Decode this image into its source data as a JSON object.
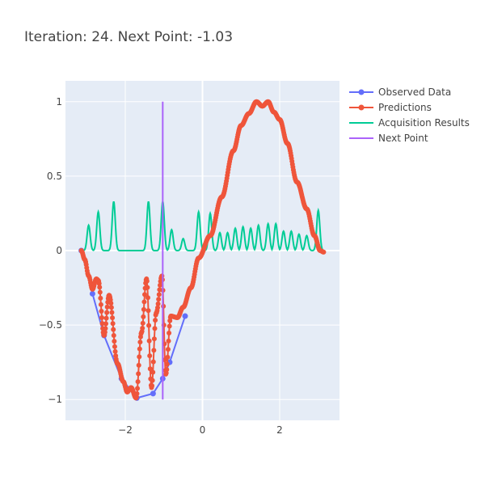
{
  "chart_data": {
    "type": "line",
    "title": "Iteration: 24. Next Point: -1.03",
    "xlabel": "",
    "ylabel": "",
    "xlim": [
      -3.55,
      3.55
    ],
    "ylim": [
      -1.14,
      1.14
    ],
    "x_ticks": [
      -2,
      0,
      2
    ],
    "x_tick_labels": [
      "−2",
      "0",
      "2"
    ],
    "y_ticks": [
      -1,
      -0.5,
      0,
      0.5,
      1
    ],
    "y_tick_labels": [
      "−1",
      "−0.5",
      "0",
      "0.5",
      "1"
    ],
    "grid": true,
    "legend_position": "top-right",
    "series": [
      {
        "name": "Observed Data",
        "mode": "lines+markers",
        "color": "#636efa",
        "x": [
          -3.14,
          -2.85,
          -2.55,
          -2.1,
          -1.7,
          -1.28,
          -1.03,
          -0.85,
          -0.45
        ],
        "y": [
          0.0,
          -0.29,
          -0.57,
          -0.86,
          -0.99,
          -0.96,
          -0.86,
          -0.75,
          -0.44
        ]
      },
      {
        "name": "Predictions",
        "mode": "lines+markers",
        "color": "#ef553b",
        "keypoints": [
          [
            -3.14,
            0.0
          ],
          [
            -3.05,
            -0.06
          ],
          [
            -2.95,
            -0.17
          ],
          [
            -2.85,
            -0.26
          ],
          [
            -2.75,
            -0.19
          ],
          [
            -2.7,
            -0.2
          ],
          [
            -2.55,
            -0.57
          ],
          [
            -2.42,
            -0.3
          ],
          [
            -2.2,
            -0.76
          ],
          [
            -2.05,
            -0.88
          ],
          [
            -1.95,
            -0.95
          ],
          [
            -1.85,
            -0.92
          ],
          [
            -1.72,
            -0.99
          ],
          [
            -1.58,
            -0.55
          ],
          [
            -1.45,
            -0.19
          ],
          [
            -1.32,
            -0.92
          ],
          [
            -1.2,
            -0.42
          ],
          [
            -1.05,
            -0.17
          ],
          [
            -0.95,
            -0.83
          ],
          [
            -0.82,
            -0.44
          ],
          [
            -0.65,
            -0.45
          ],
          [
            -0.5,
            -0.38
          ],
          [
            -0.3,
            -0.25
          ],
          [
            -0.1,
            -0.05
          ],
          [
            0.2,
            0.1
          ],
          [
            0.5,
            0.36
          ],
          [
            0.8,
            0.67
          ],
          [
            1.0,
            0.84
          ],
          [
            1.2,
            0.92
          ],
          [
            1.4,
            1.0
          ],
          [
            1.55,
            0.97
          ],
          [
            1.7,
            1.0
          ],
          [
            1.85,
            0.93
          ],
          [
            2.0,
            0.88
          ],
          [
            2.2,
            0.72
          ],
          [
            2.45,
            0.46
          ],
          [
            2.7,
            0.28
          ],
          [
            2.9,
            0.1
          ],
          [
            3.05,
            0.0
          ],
          [
            3.14,
            -0.01
          ]
        ]
      },
      {
        "name": "Acquisition Results",
        "mode": "lines",
        "color": "#00cc96",
        "peaks": [
          [
            -2.95,
            0.17
          ],
          [
            -2.7,
            0.26
          ],
          [
            -2.3,
            0.33
          ],
          [
            -1.4,
            0.33
          ],
          [
            -1.03,
            0.33
          ],
          [
            -0.8,
            0.14
          ],
          [
            -0.5,
            0.08
          ],
          [
            -0.1,
            0.26
          ],
          [
            0.2,
            0.25
          ],
          [
            0.45,
            0.12
          ],
          [
            0.65,
            0.12
          ],
          [
            0.85,
            0.15
          ],
          [
            1.05,
            0.16
          ],
          [
            1.25,
            0.15
          ],
          [
            1.45,
            0.17
          ],
          [
            1.7,
            0.18
          ],
          [
            1.9,
            0.18
          ],
          [
            2.1,
            0.13
          ],
          [
            2.3,
            0.13
          ],
          [
            2.5,
            0.11
          ],
          [
            2.7,
            0.1
          ],
          [
            3.0,
            0.27
          ]
        ]
      },
      {
        "name": "Next Point",
        "mode": "lines",
        "color": "#ab63fa",
        "x": [
          -1.03,
          -1.03
        ],
        "y": [
          -1.0,
          1.0
        ]
      }
    ]
  }
}
